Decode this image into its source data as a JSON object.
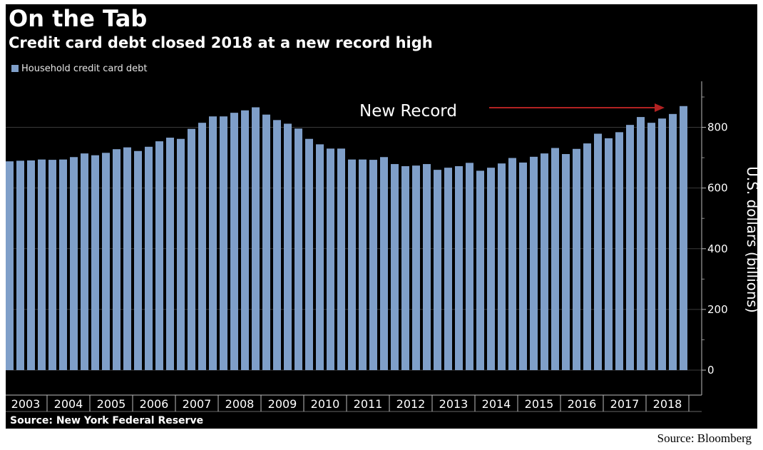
{
  "header": {
    "title": "On the Tab",
    "subtitle": "Credit card debt closed 2018 at a new record high"
  },
  "source_note": "Source: New York Federal Reserve",
  "attribution": "Source:  Bloomberg",
  "colors": {
    "background": "#000000",
    "bar": "#7f9fc9",
    "annotation_arrow": "#b22222",
    "text": "#ffffff"
  },
  "chart_data": {
    "type": "bar",
    "title": "On the Tab",
    "subtitle": "Credit card debt closed 2018 at a new record high",
    "xlabel": "",
    "ylabel": "U.S. dollars (billions)",
    "ylim": [
      0,
      900
    ],
    "yticks": [
      0,
      200,
      400,
      600,
      800
    ],
    "grid": true,
    "legend_position": "top-left",
    "x_tick_labels": [
      "2003",
      "2004",
      "2005",
      "2006",
      "2007",
      "2008",
      "2009",
      "2010",
      "2011",
      "2012",
      "2013",
      "2014",
      "2015",
      "2016",
      "2017",
      "2018"
    ],
    "categories": [
      "2003 Q1",
      "2003 Q2",
      "2003 Q3",
      "2003 Q4",
      "2004 Q1",
      "2004 Q2",
      "2004 Q3",
      "2004 Q4",
      "2005 Q1",
      "2005 Q2",
      "2005 Q3",
      "2005 Q4",
      "2006 Q1",
      "2006 Q2",
      "2006 Q3",
      "2006 Q4",
      "2007 Q1",
      "2007 Q2",
      "2007 Q3",
      "2007 Q4",
      "2008 Q1",
      "2008 Q2",
      "2008 Q3",
      "2008 Q4",
      "2009 Q1",
      "2009 Q2",
      "2009 Q3",
      "2009 Q4",
      "2010 Q1",
      "2010 Q2",
      "2010 Q3",
      "2010 Q4",
      "2011 Q1",
      "2011 Q2",
      "2011 Q3",
      "2011 Q4",
      "2012 Q1",
      "2012 Q2",
      "2012 Q3",
      "2012 Q4",
      "2013 Q1",
      "2013 Q2",
      "2013 Q3",
      "2013 Q4",
      "2014 Q1",
      "2014 Q2",
      "2014 Q3",
      "2014 Q4",
      "2015 Q1",
      "2015 Q2",
      "2015 Q3",
      "2015 Q4",
      "2016 Q1",
      "2016 Q2",
      "2016 Q3",
      "2016 Q4",
      "2017 Q1",
      "2017 Q2",
      "2017 Q3",
      "2017 Q4",
      "2018 Q1",
      "2018 Q2",
      "2018 Q3",
      "2018 Q4"
    ],
    "series": [
      {
        "name": "Household credit card debt",
        "values": [
          688,
          690,
          691,
          694,
          693,
          694,
          702,
          714,
          708,
          716,
          728,
          734,
          722,
          736,
          754,
          766,
          762,
          795,
          815,
          836,
          836,
          848,
          856,
          866,
          842,
          824,
          812,
          796,
          762,
          744,
          730,
          730,
          694,
          694,
          693,
          702,
          679,
          672,
          674,
          679,
          660,
          667,
          672,
          683,
          657,
          667,
          681,
          699,
          684,
          703,
          714,
          732,
          712,
          729,
          747,
          779,
          764,
          784,
          808,
          834,
          815,
          829,
          844,
          870
        ]
      }
    ],
    "annotations": [
      {
        "text": "New Record",
        "arrow": true
      }
    ]
  }
}
